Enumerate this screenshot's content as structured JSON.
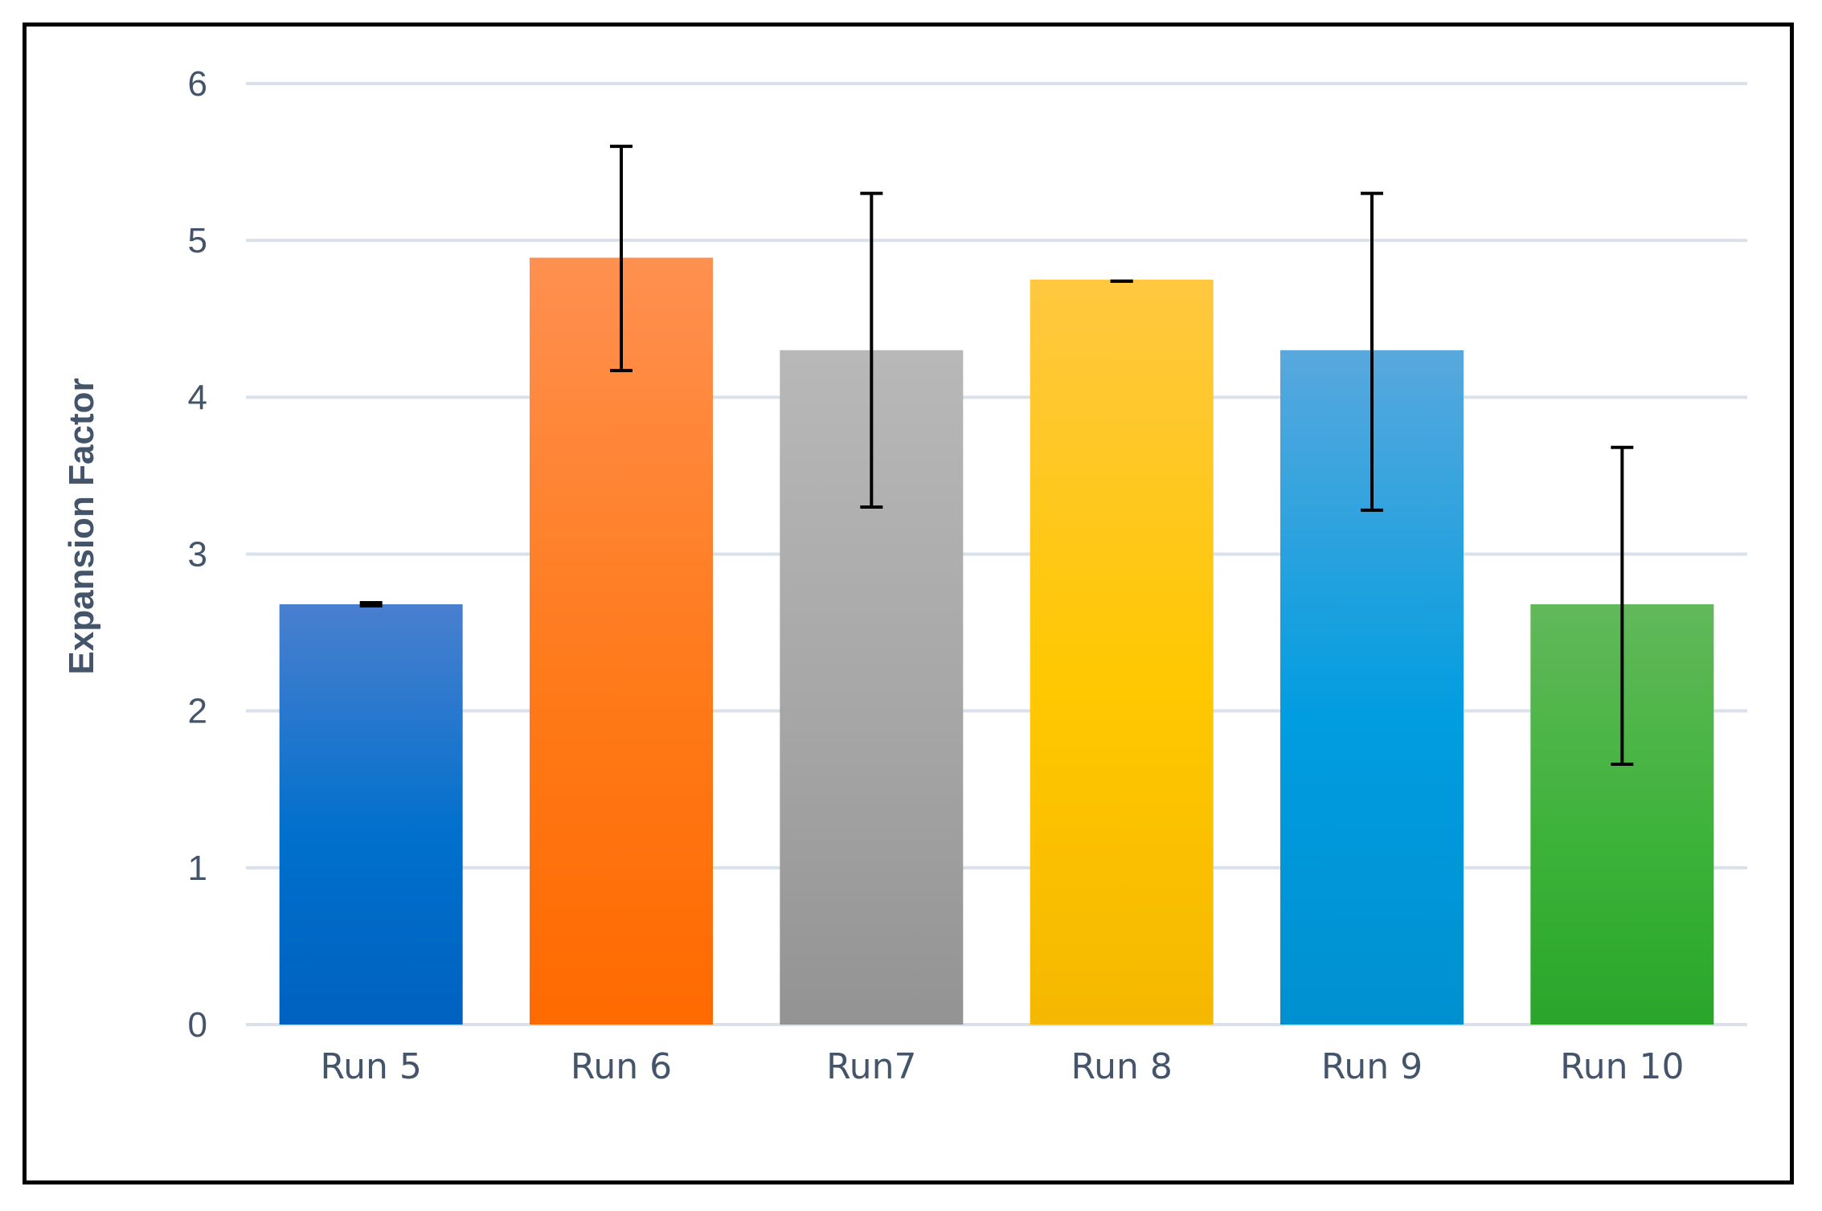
{
  "chart_data": {
    "type": "bar",
    "categories": [
      "Run 5",
      "Run 6",
      "Run7",
      "Run 8",
      "Run 9",
      "Run 10"
    ],
    "values": [
      2.68,
      4.89,
      4.3,
      4.75,
      4.3,
      2.68
    ],
    "error_upper": [
      2.69,
      5.6,
      5.3,
      4.74,
      5.3,
      3.68
    ],
    "error_lower": [
      2.67,
      4.17,
      3.3,
      4.74,
      3.28,
      1.66
    ],
    "ylabel": "Expansion Factor",
    "xlabel": "",
    "ylim": [
      0,
      6
    ],
    "yticks": [
      0,
      1,
      2,
      3,
      4,
      5,
      6
    ],
    "grid": true,
    "legend": "none",
    "bar_colors": [
      [
        "#4a7fcf",
        "#0070cc",
        "#0061c0"
      ],
      [
        "#ff9050",
        "#ff7a1a",
        "#ff6a00"
      ],
      [
        "#b8b8b8",
        "#a6a6a6",
        "#939393"
      ],
      [
        "#ffc840",
        "#ffc800",
        "#f5b800"
      ],
      [
        "#58a8dd",
        "#009de0",
        "#0090d0"
      ],
      [
        "#62b85a",
        "#3db33a",
        "#2aa52a"
      ]
    ],
    "grid_color": "#d9e1ea",
    "error_bar_color": "#000000"
  }
}
